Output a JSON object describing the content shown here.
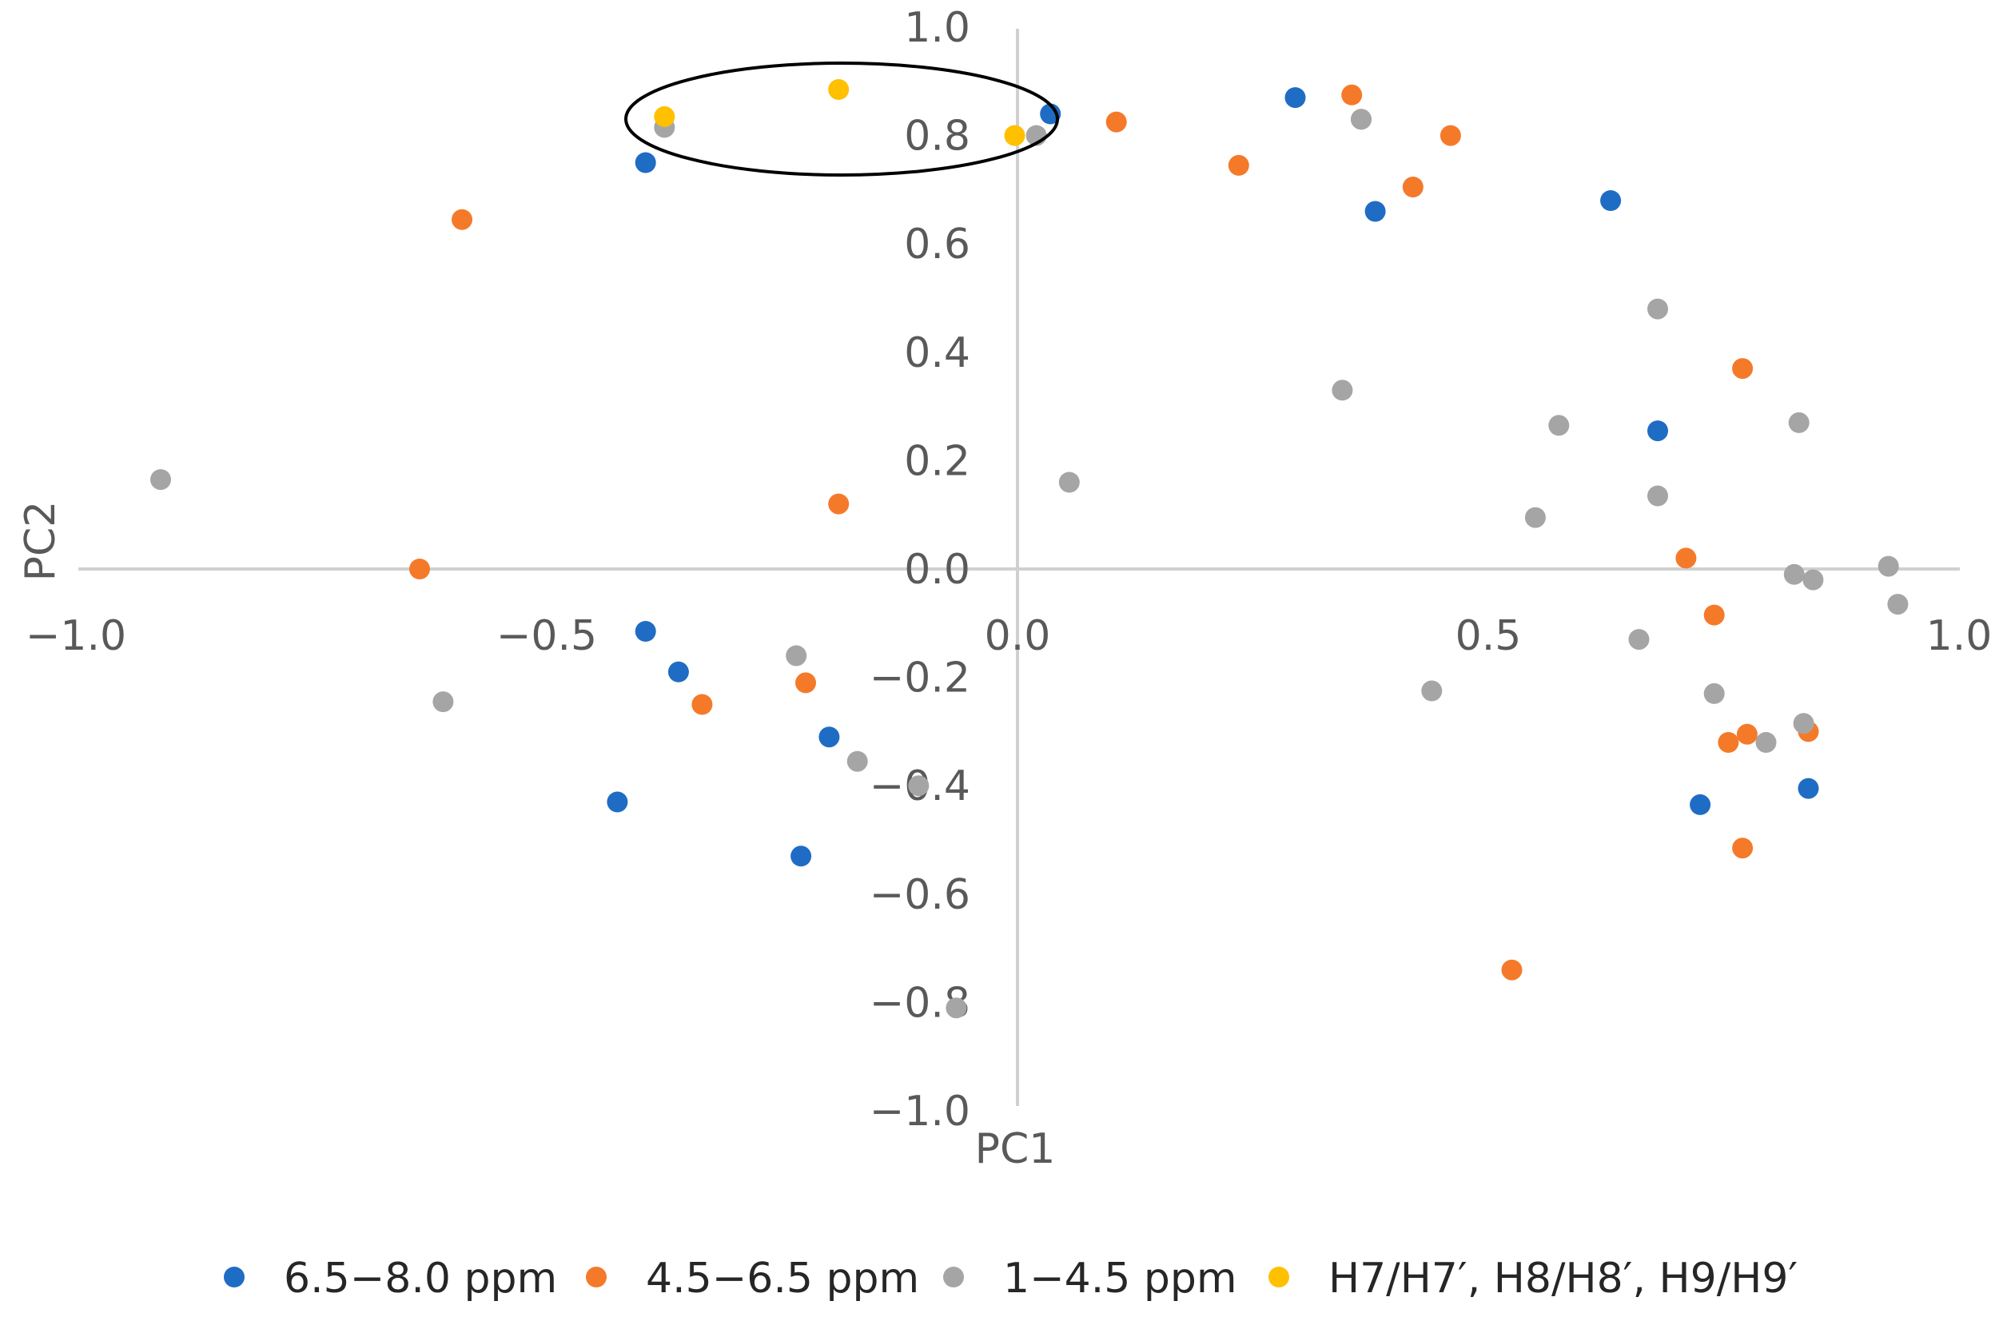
{
  "chart_data": {
    "type": "scatter",
    "title": "",
    "xlabel": "PC1",
    "ylabel": "PC2",
    "xlim": [
      -1.0,
      1.0
    ],
    "ylim": [
      -1.0,
      1.0
    ],
    "xticks": [
      "−1.0",
      "−0.5",
      "0.0",
      "0.5",
      "1.0"
    ],
    "yticks": [
      "1.0",
      "0.8",
      "0.6",
      "0.4",
      "0.2",
      "0.0",
      "−0.2",
      "−0.4",
      "−0.6",
      "−0.8",
      "−1.0"
    ],
    "grid": false,
    "legend_position": "bottom",
    "annotation": "ellipse highlighting points near PC1 -0.42 to 0.04, PC2 0.8 to 0.9",
    "series": [
      {
        "name": "6.5−8.0 ppm",
        "color": "#1F6CC4",
        "points": [
          [
            0.035,
            0.84
          ],
          [
            0.295,
            0.87
          ],
          [
            0.38,
            0.66
          ],
          [
            0.63,
            0.68
          ],
          [
            0.68,
            0.255
          ],
          [
            -0.395,
            0.75
          ],
          [
            -0.395,
            -0.115
          ],
          [
            -0.36,
            -0.19
          ],
          [
            -0.2,
            -0.31
          ],
          [
            -0.425,
            -0.43
          ],
          [
            -0.23,
            -0.53
          ],
          [
            0.725,
            -0.435
          ],
          [
            0.84,
            -0.405
          ]
        ]
      },
      {
        "name": "4.5−6.5 ppm",
        "color": "#F47A2A",
        "points": [
          [
            -0.59,
            0.645
          ],
          [
            0.105,
            0.825
          ],
          [
            0.235,
            0.745
          ],
          [
            0.355,
            0.875
          ],
          [
            0.365,
            0.83
          ],
          [
            0.42,
            0.705
          ],
          [
            0.46,
            0.8
          ],
          [
            -0.635,
            0.0
          ],
          [
            -0.19,
            0.12
          ],
          [
            -0.335,
            -0.25
          ],
          [
            -0.225,
            -0.21
          ],
          [
            0.77,
            0.37
          ],
          [
            0.71,
            0.02
          ],
          [
            0.74,
            -0.085
          ],
          [
            0.755,
            -0.32
          ],
          [
            0.775,
            -0.305
          ],
          [
            0.84,
            -0.3
          ],
          [
            0.77,
            -0.515
          ],
          [
            0.525,
            -0.74
          ]
        ]
      },
      {
        "name": "1−4.5 ppm",
        "color": "#A5A5A5",
        "points": [
          [
            -0.375,
            0.815
          ],
          [
            0.02,
            0.8
          ],
          [
            -0.91,
            0.165
          ],
          [
            -0.61,
            -0.245
          ],
          [
            -0.235,
            -0.16
          ],
          [
            -0.17,
            -0.355
          ],
          [
            -0.105,
            -0.4
          ],
          [
            -0.065,
            -0.81
          ],
          [
            0.055,
            0.16
          ],
          [
            0.345,
            0.33
          ],
          [
            0.365,
            0.83
          ],
          [
            0.55,
            0.095
          ],
          [
            0.575,
            0.265
          ],
          [
            0.44,
            -0.225
          ],
          [
            0.68,
            0.48
          ],
          [
            0.68,
            0.135
          ],
          [
            0.66,
            -0.13
          ],
          [
            0.74,
            -0.23
          ],
          [
            0.795,
            -0.32
          ],
          [
            0.83,
            0.27
          ],
          [
            0.825,
            -0.01
          ],
          [
            0.845,
            -0.02
          ],
          [
            0.925,
            0.005
          ],
          [
            0.935,
            -0.065
          ],
          [
            0.835,
            -0.285
          ]
        ]
      },
      {
        "name": "H7/H7′, H8/H8′, H9/H9′",
        "color": "#FFC000",
        "points": [
          [
            -0.375,
            0.835
          ],
          [
            -0.19,
            0.885
          ],
          [
            -0.003,
            0.8
          ]
        ]
      }
    ]
  }
}
